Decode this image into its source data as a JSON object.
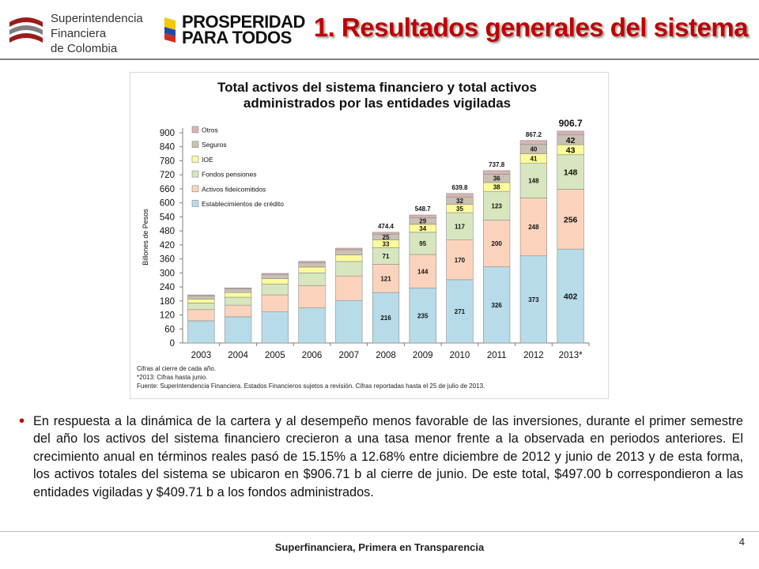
{
  "header": {
    "org_line1": "Superintendencia",
    "org_line2": "Financiera",
    "org_line3": "de Colombia",
    "campaign_line1": "PROSPERIDAD",
    "campaign_line2": "PARA TODOS",
    "slide_title": "1. Resultados generales del sistema"
  },
  "chart_notes": {
    "line1": "Cifras al cierre de cada año.",
    "line2": "*2013: Cifras hasta junio.",
    "line3": "Fuente: Superintendencia Financiera. Estados Financieros sujetos a revisión. Cifras reportadas hasta el 25 de julio de 2013."
  },
  "chart_data": {
    "type": "bar",
    "stacked": true,
    "title": "Total activos del sistema financiero y total activos administrados por las entidades vigiladas",
    "title_line1": "Total activos del sistema financiero y total activos",
    "title_line2": "administrados por las entidades vigiladas",
    "xlabel": "",
    "ylabel": "Billones de Pesos",
    "ylim": [
      0,
      900
    ],
    "yticks": [
      0,
      60,
      120,
      180,
      240,
      300,
      360,
      420,
      480,
      540,
      600,
      660,
      720,
      780,
      840,
      900
    ],
    "categories": [
      "2003",
      "2004",
      "2005",
      "2006",
      "2007",
      "2008",
      "2009",
      "2010",
      "2011",
      "2012",
      "2013*"
    ],
    "series": [
      {
        "name": "Establecimientos de crédito",
        "color": "#b7dbe9",
        "values": [
          95,
          112,
          133,
          150,
          182,
          216,
          235,
          271,
          326,
          373,
          402
        ]
      },
      {
        "name": "Activos fideicomitidos",
        "color": "#fbd3bd",
        "values": [
          48,
          50,
          73,
          95,
          105,
          121,
          144,
          170,
          200,
          248,
          256
        ]
      },
      {
        "name": "Fondos pensiones",
        "color": "#d8e6bf",
        "values": [
          28,
          34,
          46,
          55,
          62,
          71,
          95,
          117,
          123,
          148,
          148
        ]
      },
      {
        "name": "IOE",
        "color": "#fbfb9b",
        "values": [
          17,
          20,
          24,
          25,
          28,
          33,
          34,
          35,
          38,
          41,
          43
        ]
      },
      {
        "name": "Seguros",
        "color": "#c9c1b2",
        "values": [
          13,
          15,
          16,
          19,
          22,
          25,
          29,
          32,
          36,
          40,
          42
        ]
      },
      {
        "name": "Otros",
        "color": "#d9b3b3",
        "values": [
          5,
          5,
          6,
          6,
          7,
          8,
          11,
          15,
          15,
          17,
          16
        ]
      }
    ],
    "data_labels": [
      [
        null,
        null,
        null,
        null,
        null,
        "216",
        "235",
        "271",
        "326",
        "373",
        "402"
      ],
      [
        null,
        null,
        null,
        null,
        null,
        "121",
        "144",
        "170",
        "200",
        "248",
        "256"
      ],
      [
        null,
        null,
        null,
        null,
        null,
        "71",
        "95",
        "117",
        "123",
        "148",
        "148"
      ],
      [
        null,
        null,
        null,
        null,
        null,
        "33",
        "34",
        "35",
        "38",
        "41",
        "43"
      ],
      [
        null,
        null,
        null,
        null,
        null,
        "25",
        "29",
        "32",
        "36",
        "40",
        "42"
      ]
    ],
    "totals": [
      null,
      null,
      null,
      null,
      null,
      "474.4",
      "548.7",
      "639.8",
      "737.8",
      "867.2",
      "906.7"
    ],
    "legend_position": "top-left",
    "grid": false
  },
  "bullet": {
    "text": "En respuesta a la dinámica de la cartera y al desempeño menos favorable de las inversiones, durante el primer semestre del año los activos del sistema financiero crecieron a una tasa menor frente a la observada en periodos anteriores. El crecimiento anual en términos reales pasó de 15.15% a 12.68% entre diciembre de 2012 y junio de 2013 y de esta forma, los activos totales del sistema se ubicaron en $906.71 b al cierre de junio. De este total, $497.00 b correspondieron a las entidades vigiladas y $409.71 b a los fondos administrados."
  },
  "footer": {
    "tagline": "Superfinanciera, Primera en Transparencia",
    "page_number": "4"
  },
  "colors": {
    "title_red": "#c00000",
    "bar_outline": "#8c8c8c"
  }
}
